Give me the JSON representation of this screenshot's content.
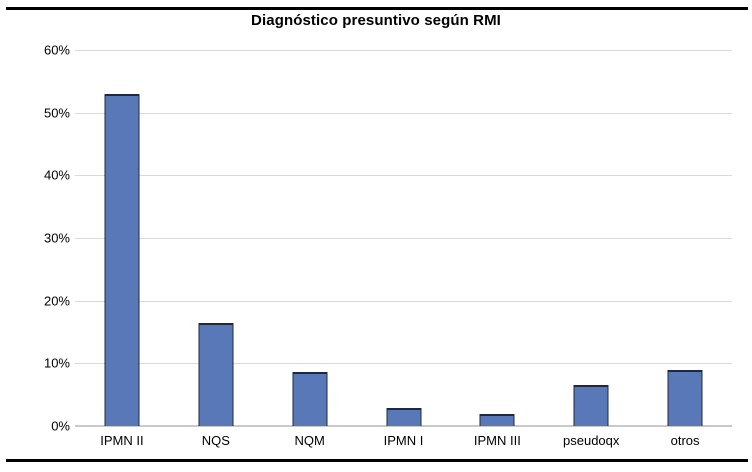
{
  "chart_data": {
    "type": "bar",
    "title": "Diagnóstico presuntivo según RMI",
    "categories": [
      "IPMN II",
      "NQS",
      "NQM",
      "IPMN I",
      "IPMN III",
      "pseudoqx",
      "otros"
    ],
    "values": [
      53,
      16.5,
      8.6,
      2.8,
      1.9,
      6.5,
      8.9
    ],
    "unit": "%",
    "xlabel": "",
    "ylabel": "",
    "ylim": [
      0,
      60
    ],
    "ytick_step": 10,
    "ytick_labels": [
      "0%",
      "10%",
      "20%",
      "30%",
      "40%",
      "50%",
      "60%"
    ],
    "grid": true,
    "legend_visible": false,
    "colors": {
      "bar_fill": "#5878b8",
      "bar_border": "#20293a",
      "gridline": "#d9d9d9",
      "axis_line": "#c9c9c9",
      "rule": "#000000",
      "text": "#000000",
      "background": "#ffffff"
    }
  }
}
